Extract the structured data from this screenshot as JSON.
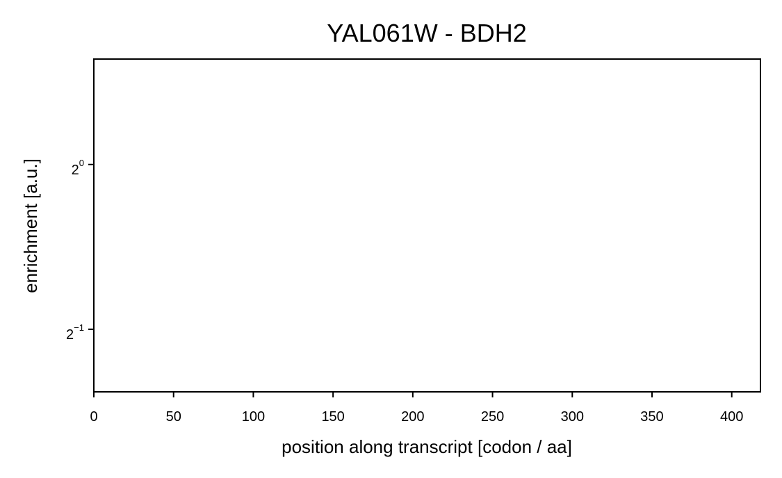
{
  "chart_data": {
    "type": "line",
    "title": "YAL061W - BDH2",
    "xlabel": "position along transcript [codon / aa]",
    "ylabel": "enrichment [a.u.]",
    "xlim": [
      0,
      418
    ],
    "ylim_log2": [
      -1.38,
      0.64
    ],
    "yscale": "log2",
    "xticks": [
      {
        "value": 0,
        "label": "0"
      },
      {
        "value": 50,
        "label": "50"
      },
      {
        "value": 100,
        "label": "100"
      },
      {
        "value": 150,
        "label": "150"
      },
      {
        "value": 200,
        "label": "200"
      },
      {
        "value": 250,
        "label": "250"
      },
      {
        "value": 300,
        "label": "300"
      },
      {
        "value": 350,
        "label": "350"
      },
      {
        "value": 400,
        "label": "400"
      }
    ],
    "yticks": [
      {
        "exponent": 0,
        "base": "2",
        "exp_label": "0"
      },
      {
        "exponent": -1,
        "base": "2",
        "exp_label": "−1"
      }
    ],
    "series": [],
    "grid": false,
    "legend": false
  }
}
